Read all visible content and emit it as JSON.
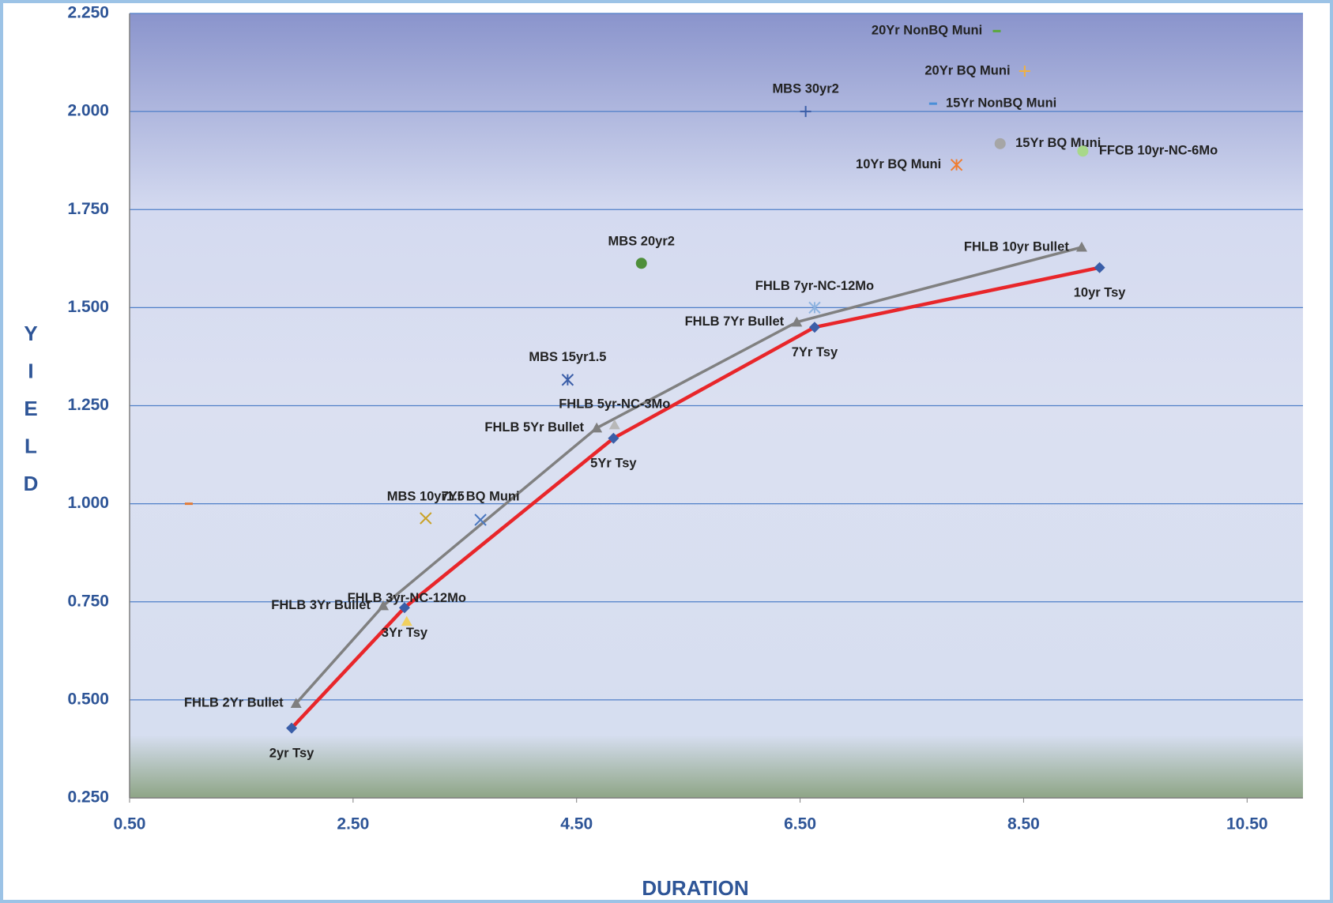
{
  "chart_data": {
    "type": "scatter",
    "x_label": "DURATION",
    "y_label": "YIELD",
    "xlim": [
      0.5,
      11.0
    ],
    "ylim": [
      0.25,
      2.25
    ],
    "xticks": [
      {
        "value": 0.5,
        "label": "0.50"
      },
      {
        "value": 2.5,
        "label": "2.50"
      },
      {
        "value": 4.5,
        "label": "4.50"
      },
      {
        "value": 6.5,
        "label": "6.50"
      },
      {
        "value": 8.5,
        "label": "8.50"
      },
      {
        "value": 10.5,
        "label": "10.50"
      }
    ],
    "yticks": [
      {
        "value": 0.25,
        "label": "0.250"
      },
      {
        "value": 0.5,
        "label": "0.500"
      },
      {
        "value": 0.75,
        "label": "0.750"
      },
      {
        "value": 1.0,
        "label": "1.000"
      },
      {
        "value": 1.25,
        "label": "1.250"
      },
      {
        "value": 1.5,
        "label": "1.500"
      },
      {
        "value": 1.75,
        "label": "1.750"
      },
      {
        "value": 2.0,
        "label": "2.000"
      },
      {
        "value": 2.25,
        "label": "2.250"
      }
    ],
    "grid": true,
    "series": [
      {
        "color": "#e8262a",
        "marker_color": "#3a5ea8",
        "marker": "diamond",
        "labels": [
          "2yr Tsy",
          "3Yr Tsy",
          "5Yr Tsy",
          "7Yr Tsy",
          "10yr Tsy"
        ],
        "x": [
          1.95,
          2.96,
          4.83,
          6.63,
          9.18
        ],
        "y": [
          0.428,
          0.735,
          1.167,
          1.45,
          1.602
        ]
      },
      {
        "color": "#808080",
        "marker_color": "#7f7f7f",
        "marker": "triangle",
        "labels": [
          "FHLB 2Yr Bullet",
          "FHLB 3Yr Bullet",
          "FHLB 5Yr Bullet",
          "FHLB 7Yr Bullet",
          "FHLB 10yr Bullet"
        ],
        "x": [
          1.99,
          2.77,
          4.68,
          6.47,
          9.02
        ],
        "y": [
          0.491,
          0.74,
          1.193,
          1.463,
          1.654
        ]
      }
    ],
    "points": [
      {
        "label": null,
        "x": 1.03,
        "y": 1.0,
        "color": "#e07b39",
        "marker": "dash"
      },
      {
        "label": "MBS 10yr1.5",
        "x": 3.15,
        "y": 0.963,
        "color": "#c9a227",
        "marker": "x"
      },
      {
        "label": "7Yr BQ Muni",
        "x": 3.64,
        "y": 0.959,
        "color": "#4a78c0",
        "marker": "x"
      },
      {
        "label": "FHLB 3yr-NC-12Mo",
        "x": 2.98,
        "y": 0.7,
        "color": "#f0d060",
        "marker": "triangle"
      },
      {
        "label": "MBS 15yr1.5",
        "x": 4.42,
        "y": 1.316,
        "color": "#3a5ea8",
        "marker": "asterisk"
      },
      {
        "label": "FHLB 5yr-NC-3Mo",
        "x": 4.84,
        "y": 1.201,
        "color": "#b8b8b8",
        "marker": "triangle"
      },
      {
        "label": "MBS 20yr2",
        "x": 5.08,
        "y": 1.613,
        "color": "#4e8f3a",
        "marker": "circle"
      },
      {
        "label": "FHLB 7yr-NC-12Mo",
        "x": 6.63,
        "y": 1.5,
        "color": "#8fb4e0",
        "marker": "asterisk"
      },
      {
        "label": "MBS 30yr2",
        "x": 6.55,
        "y": 2.0,
        "color": "#3a5ea8",
        "marker": "plus"
      },
      {
        "label": "10Yr BQ Muni",
        "x": 7.9,
        "y": 1.864,
        "color": "#ef7d31",
        "marker": "asterisk"
      },
      {
        "label": "15Yr NonBQ Muni",
        "x": 7.69,
        "y": 2.02,
        "color": "#4a8fd8",
        "marker": "dash"
      },
      {
        "label": "20Yr NonBQ Muni",
        "x": 8.26,
        "y": 2.205,
        "color": "#5aa83a",
        "marker": "dash"
      },
      {
        "label": "20Yr BQ Muni",
        "x": 8.51,
        "y": 2.103,
        "color": "#f0b040",
        "marker": "plus"
      },
      {
        "label": "15Yr BQ Muni",
        "x": 8.29,
        "y": 1.918,
        "color": "#a6a6a6",
        "marker": "circle"
      },
      {
        "label": "FFCB 10yr-NC-6Mo",
        "x": 9.03,
        "y": 1.899,
        "color": "#a8d88a",
        "marker": "circle"
      }
    ]
  }
}
